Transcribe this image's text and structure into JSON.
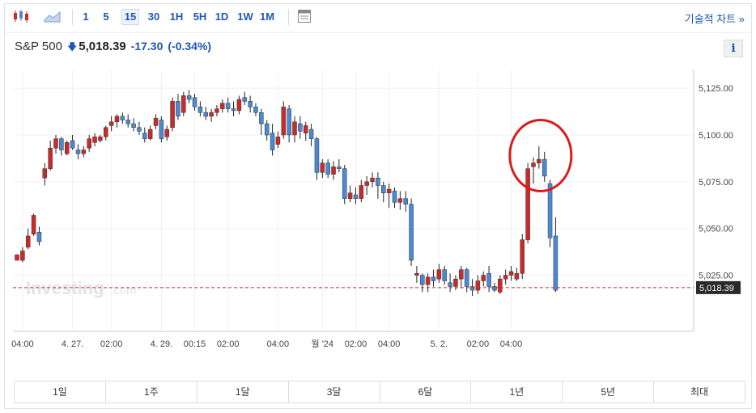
{
  "toolbar": {
    "candle_icon": "candlestick-icon",
    "area_icon": "area-chart-icon",
    "intervals": [
      "1",
      "5",
      "15",
      "30",
      "1H",
      "5H",
      "1D",
      "1W",
      "1M"
    ],
    "active_interval": "15",
    "settings_icon": "chart-settings-icon",
    "tech_chart_label": "기술적 차트 »"
  },
  "header": {
    "symbol": "S&P 500",
    "arrow": "🡇",
    "price": "5,018.39",
    "change": "-17.30",
    "change_pct": "(-0.34%)",
    "info_label": "i"
  },
  "watermark": {
    "main": "Investing",
    "suffix": ".com"
  },
  "ranges": [
    "1일",
    "1주",
    "1달",
    "3달",
    "6달",
    "1년",
    "5년",
    "최대"
  ],
  "colors": {
    "up": "#cc2a2a",
    "down": "#4a8ad4",
    "accent": "#1d56b4",
    "price_line": "#cc2a2a",
    "highlight": "#e01818"
  },
  "chart_data": {
    "type": "candlestick",
    "ylim": [
      4995,
      5135
    ],
    "yticks": [
      5025,
      5050,
      5075,
      5100,
      5125
    ],
    "ytick_labels": [
      "5,025.00",
      "5,050.00",
      "5,075.00",
      "5,100.00",
      "5,125.00"
    ],
    "last_price": 5018.39,
    "last_price_label": "5,018.39",
    "xticks": [
      {
        "i": 1,
        "label": "04:00"
      },
      {
        "i": 10,
        "label": "4. 27."
      },
      {
        "i": 17,
        "label": "02:00"
      },
      {
        "i": 26,
        "label": "4. 29."
      },
      {
        "i": 32,
        "label": "00:15"
      },
      {
        "i": 38,
        "label": "02:00"
      },
      {
        "i": 47,
        "label": "04:00"
      },
      {
        "i": 55,
        "label": "월 '24"
      },
      {
        "i": 61,
        "label": "02:00"
      },
      {
        "i": 67,
        "label": "04:00"
      },
      {
        "i": 76,
        "label": "5. 2."
      },
      {
        "i": 83,
        "label": "02:00"
      },
      {
        "i": 89,
        "label": "04:00"
      }
    ],
    "candles": [
      [
        5033,
        5036,
        5033,
        5036
      ],
      [
        5033,
        5040,
        5032,
        5038
      ],
      [
        5040,
        5050,
        5039,
        5046
      ],
      [
        5047,
        5058,
        5046,
        5057
      ],
      [
        5048,
        5051,
        5041,
        5043
      ],
      [
        5077,
        5085,
        5073,
        5082
      ],
      [
        5082,
        5097,
        5081,
        5093
      ],
      [
        5093,
        5100,
        5090,
        5098
      ],
      [
        5098,
        5099,
        5089,
        5092
      ],
      [
        5090,
        5097,
        5089,
        5096
      ],
      [
        5097,
        5100,
        5092,
        5093
      ],
      [
        5092,
        5095,
        5087,
        5090
      ],
      [
        5090,
        5094,
        5088,
        5092
      ],
      [
        5093,
        5100,
        5091,
        5098
      ],
      [
        5096,
        5101,
        5094,
        5099
      ],
      [
        5097,
        5100,
        5096,
        5099
      ],
      [
        5099,
        5105,
        5097,
        5104
      ],
      [
        5105,
        5110,
        5102,
        5107
      ],
      [
        5107,
        5111,
        5104,
        5110
      ],
      [
        5110,
        5112,
        5106,
        5108
      ],
      [
        5108,
        5111,
        5104,
        5106
      ],
      [
        5106,
        5109,
        5102,
        5104
      ],
      [
        5104,
        5107,
        5100,
        5102
      ],
      [
        5101,
        5104,
        5096,
        5098
      ],
      [
        5098,
        5105,
        5097,
        5103
      ],
      [
        5105,
        5111,
        5103,
        5109
      ],
      [
        5108,
        5110,
        5096,
        5098
      ],
      [
        5099,
        5105,
        5097,
        5103
      ],
      [
        5104,
        5120,
        5102,
        5118
      ],
      [
        5118,
        5122,
        5108,
        5110
      ],
      [
        5112,
        5123,
        5110,
        5121
      ],
      [
        5121,
        5124,
        5117,
        5119
      ],
      [
        5120,
        5122,
        5113,
        5115
      ],
      [
        5115,
        5118,
        5110,
        5112
      ],
      [
        5112,
        5115,
        5108,
        5110
      ],
      [
        5110,
        5114,
        5107,
        5112
      ],
      [
        5112,
        5116,
        5110,
        5114
      ],
      [
        5114,
        5119,
        5112,
        5117
      ],
      [
        5117,
        5120,
        5112,
        5114
      ],
      [
        5114,
        5118,
        5110,
        5113
      ],
      [
        5113,
        5121,
        5111,
        5119
      ],
      [
        5120,
        5123,
        5116,
        5118
      ],
      [
        5118,
        5121,
        5112,
        5115
      ],
      [
        5115,
        5117,
        5110,
        5112
      ],
      [
        5112,
        5114,
        5100,
        5106
      ],
      [
        5106,
        5108,
        5097,
        5100
      ],
      [
        5101,
        5106,
        5089,
        5092
      ],
      [
        5095,
        5102,
        5093,
        5099
      ],
      [
        5100,
        5118,
        5098,
        5115
      ],
      [
        5114,
        5116,
        5096,
        5100
      ],
      [
        5100,
        5110,
        5096,
        5107
      ],
      [
        5106,
        5110,
        5098,
        5102
      ],
      [
        5101,
        5107,
        5097,
        5105
      ],
      [
        5103,
        5106,
        5094,
        5098
      ],
      [
        5098,
        5099,
        5076,
        5080
      ],
      [
        5080,
        5087,
        5077,
        5085
      ],
      [
        5085,
        5087,
        5077,
        5079
      ],
      [
        5079,
        5086,
        5076,
        5083
      ],
      [
        5083,
        5087,
        5080,
        5082
      ],
      [
        5082,
        5084,
        5063,
        5066
      ],
      [
        5066,
        5073,
        5064,
        5069
      ],
      [
        5068,
        5072,
        5063,
        5066
      ],
      [
        5066,
        5076,
        5064,
        5073
      ],
      [
        5073,
        5078,
        5068,
        5075
      ],
      [
        5075,
        5080,
        5072,
        5077
      ],
      [
        5077,
        5080,
        5066,
        5073
      ],
      [
        5073,
        5075,
        5064,
        5069
      ],
      [
        5069,
        5074,
        5061,
        5071
      ],
      [
        5070,
        5072,
        5061,
        5064
      ],
      [
        5064,
        5070,
        5060,
        5066
      ],
      [
        5066,
        5070,
        5059,
        5063
      ],
      [
        5063,
        5066,
        5030,
        5033
      ],
      [
        5025,
        5030,
        5021,
        5026
      ],
      [
        5025,
        5026,
        5016,
        5020
      ],
      [
        5020,
        5026,
        5016,
        5024
      ],
      [
        5024,
        5028,
        5019,
        5022
      ],
      [
        5023,
        5031,
        5021,
        5028
      ],
      [
        5028,
        5030,
        5020,
        5022
      ],
      [
        5021,
        5026,
        5016,
        5019
      ],
      [
        5019,
        5025,
        5017,
        5023
      ],
      [
        5023,
        5030,
        5018,
        5028
      ],
      [
        5028,
        5029,
        5016,
        5019
      ],
      [
        5019,
        5023,
        5014,
        5017
      ],
      [
        5017,
        5025,
        5015,
        5022
      ],
      [
        5022,
        5027,
        5019,
        5025
      ],
      [
        5026,
        5030,
        5016,
        5019
      ],
      [
        5019,
        5021,
        5016,
        5017
      ],
      [
        5016,
        5025,
        5015,
        5023
      ],
      [
        5023,
        5028,
        5020,
        5025
      ],
      [
        5025,
        5030,
        5022,
        5027
      ],
      [
        5023,
        5029,
        5022,
        5026
      ],
      [
        5026,
        5047,
        5023,
        5044
      ],
      [
        5044,
        5085,
        5042,
        5082
      ],
      [
        5083,
        5088,
        5074,
        5085
      ],
      [
        5085,
        5094,
        5082,
        5087
      ],
      [
        5087,
        5091,
        5075,
        5078
      ],
      [
        5074,
        5076,
        5040,
        5045
      ],
      [
        5046,
        5056,
        5016,
        5017
      ]
    ]
  }
}
